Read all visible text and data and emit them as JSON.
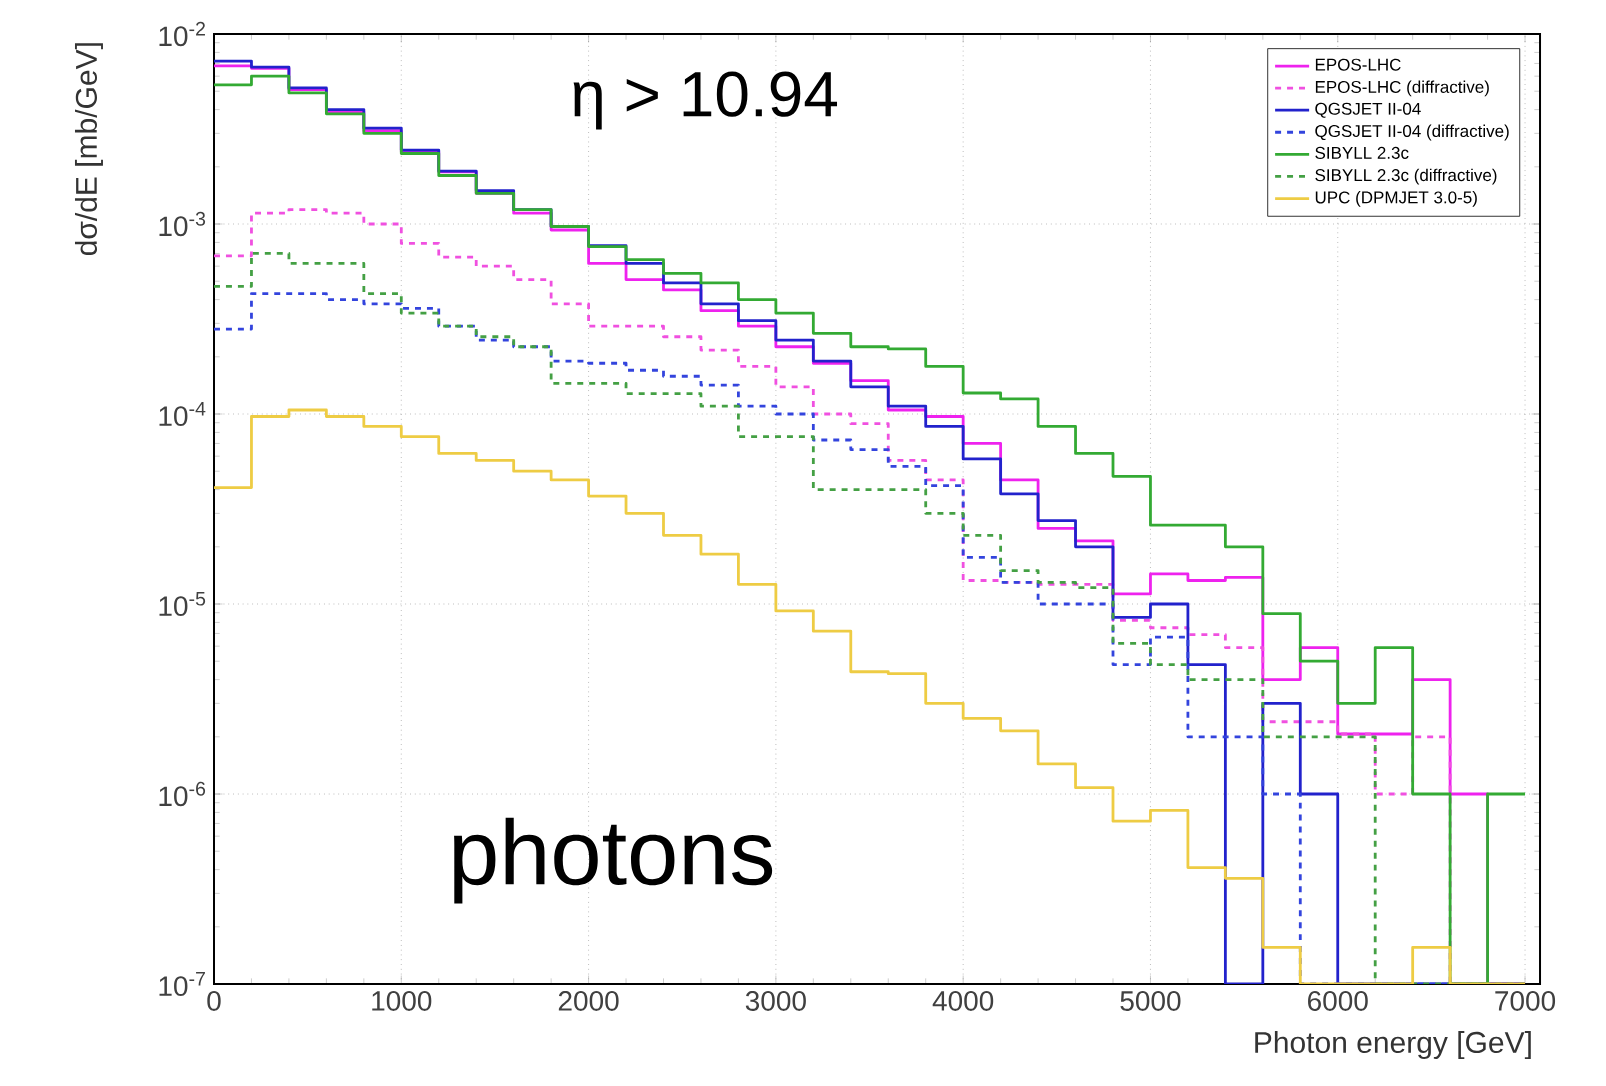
{
  "chart_data": {
    "type": "histogram",
    "xlabel": "Photon energy [GeV]",
    "ylabel": "dσ/dE [mb/GeV]",
    "annotations": [
      "η > 10.94",
      "photons"
    ],
    "bins": [
      0,
      200,
      400,
      600,
      800,
      1000,
      1200,
      1400,
      1600,
      1800,
      2000,
      2200,
      2400,
      2600,
      2800,
      3000,
      3200,
      3400,
      3600,
      3800,
      4000,
      4200,
      4400,
      4600,
      4800,
      5000,
      5200,
      5400,
      5600,
      5800,
      6000,
      6200,
      6400,
      6600,
      6800,
      7000
    ],
    "series": [
      {
        "name": "EPOS-LHC",
        "color": "#ee22ee",
        "line_style": "solid",
        "values": [
          0.0068,
          0.0066,
          0.0051,
          0.0039,
          0.0031,
          0.0024,
          0.00188,
          0.00145,
          0.00114,
          0.00093,
          0.00062,
          0.00051,
          0.00045,
          0.00035,
          0.00029,
          0.000226,
          0.000185,
          0.00015,
          0.000105,
          9.7e-05,
          7e-05,
          4.5e-05,
          2.5e-05,
          2.15e-05,
          1.13e-05,
          1.44e-05,
          1.33e-05,
          1.38e-05,
          4e-06,
          5.9e-06,
          2.07e-06,
          2.07e-06,
          4e-06,
          1e-06,
          null
        ]
      },
      {
        "name": "EPOS-LHC (diffractive)",
        "color": "#f050e0",
        "line_style": "dashed",
        "values": [
          0.00068,
          0.00114,
          0.00119,
          0.00114,
          0.001,
          0.00079,
          0.00067,
          0.0006,
          0.00051,
          0.00038,
          0.00029,
          0.00029,
          0.000255,
          0.000217,
          0.000178,
          0.000139,
          0.0001,
          8.9e-05,
          5.7e-05,
          4.5e-05,
          1.33e-05,
          1.3e-05,
          1.27e-05,
          1.27e-05,
          8.2e-06,
          7.5e-06,
          6.9e-06,
          5.9e-06,
          2.4e-06,
          2.4e-06,
          2.07e-06,
          1e-06,
          2e-06,
          null,
          null
        ]
      },
      {
        "name": "QGSJET II-04",
        "color": "#2222cc",
        "line_style": "solid",
        "values": [
          0.0072,
          0.0067,
          0.0052,
          0.004,
          0.0032,
          0.00245,
          0.0019,
          0.0015,
          0.00119,
          0.00097,
          0.00077,
          0.00062,
          0.00049,
          0.00038,
          0.00031,
          0.000245,
          0.00019,
          0.000139,
          0.00011,
          8.6e-05,
          5.8e-05,
          3.8e-05,
          2.75e-05,
          2e-05,
          8.5e-06,
          1e-05,
          4.8e-06,
          null,
          3e-06,
          1e-06,
          null,
          null,
          null,
          null,
          null
        ]
      },
      {
        "name": "QGSJET II-04 (diffractive)",
        "color": "#3344dd",
        "line_style": "dashed",
        "values": [
          0.00028,
          0.00043,
          0.00043,
          0.0004,
          0.00038,
          0.00036,
          0.00029,
          0.000245,
          0.000226,
          0.00019,
          0.000185,
          0.00017,
          0.000158,
          0.000142,
          0.00011,
          0.0001,
          7.3e-05,
          6.5e-05,
          5.3e-05,
          4.2e-05,
          1.76e-05,
          1.3e-05,
          1e-05,
          1e-05,
          4.8e-06,
          6.7e-06,
          2e-06,
          2e-06,
          1e-06,
          null,
          null,
          null,
          null,
          null,
          null
        ]
      },
      {
        "name": "SIBYLL 2.3c",
        "color": "#33aa33",
        "line_style": "solid",
        "values": [
          0.0054,
          0.006,
          0.0049,
          0.0038,
          0.003,
          0.00235,
          0.0018,
          0.00145,
          0.00119,
          0.00097,
          0.00076,
          0.00065,
          0.00055,
          0.00049,
          0.0004,
          0.00034,
          0.000266,
          0.000226,
          0.00022,
          0.000178,
          0.000129,
          0.00012,
          8.6e-05,
          6.2e-05,
          4.7e-05,
          2.6e-05,
          2.6e-05,
          2e-05,
          8.9e-06,
          5e-06,
          3e-06,
          5.9e-06,
          1e-06,
          null,
          1e-06
        ]
      },
      {
        "name": "SIBYLL 2.3c (diffractive)",
        "color": "#44a044",
        "line_style": "dashed",
        "values": [
          0.00047,
          0.0007,
          0.00062,
          0.00062,
          0.00043,
          0.00034,
          0.00029,
          0.000255,
          0.000226,
          0.000145,
          0.000145,
          0.000128,
          0.000128,
          0.00011,
          7.6e-05,
          7.6e-05,
          4e-05,
          4e-05,
          4e-05,
          3e-05,
          2.3e-05,
          1.5e-05,
          1.3e-05,
          1.22e-05,
          6.2e-06,
          4.8e-06,
          4e-06,
          4e-06,
          2e-06,
          2e-06,
          2e-06,
          null,
          null,
          null,
          null
        ]
      },
      {
        "name": "UPC (DPMJET 3.0-5)",
        "color": "#eecc44",
        "line_style": "solid",
        "values": [
          4.1e-05,
          9.7e-05,
          0.000105,
          9.7e-05,
          8.6e-05,
          7.6e-05,
          6.2e-05,
          5.7e-05,
          5e-05,
          4.5e-05,
          3.7e-05,
          3e-05,
          2.3e-05,
          1.83e-05,
          1.27e-05,
          9.2e-06,
          7.2e-06,
          4.4e-06,
          4.3e-06,
          3e-06,
          2.5e-06,
          2.15e-06,
          1.44e-06,
          1.08e-06,
          7.2e-07,
          8.2e-07,
          4.1e-07,
          3.6e-07,
          1.56e-07,
          null,
          null,
          null,
          1.56e-07,
          null,
          null
        ]
      }
    ],
    "xlim": [
      0,
      7080
    ],
    "ylim": [
      1e-07,
      0.01
    ],
    "xticks": [
      0,
      1000,
      2000,
      3000,
      4000,
      5000,
      6000,
      7000
    ],
    "yticks": [
      {
        "value": 1e-07,
        "label": "10$^{-7}$"
      },
      {
        "value": 1e-06,
        "label": "10$^{-6}$"
      },
      {
        "value": 1e-05,
        "label": "10$^{-5}$"
      },
      {
        "value": 0.0001,
        "label": "10$^{-4}$"
      },
      {
        "value": 0.001,
        "label": "10$^{-3}$"
      },
      {
        "value": 0.01,
        "label": "10$^{-2}$"
      }
    ],
    "log": "y",
    "grid": true,
    "legend": "top right"
  }
}
